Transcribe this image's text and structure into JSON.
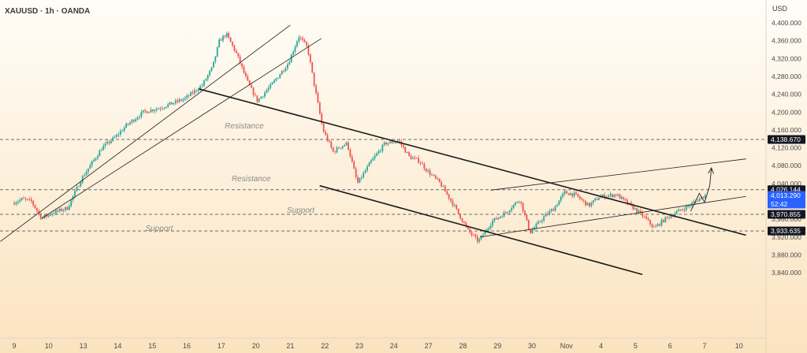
{
  "header": {
    "symbol": "XAUUSD",
    "timeframe": "1h",
    "broker": "OANDA",
    "separator": " · ",
    "currency": "USD"
  },
  "colors": {
    "bg_top": "#fffdf8",
    "bg_bottom": "#fbe3bf",
    "up": "#26a69a",
    "down": "#ef5350",
    "line": "#1a1a1a",
    "grid_text": "#4a4a4a",
    "annotation": "#8a8a8a",
    "badge_dark": "#131722",
    "badge_blue": "#2962ff"
  },
  "chart_data": {
    "type": "candlestick",
    "title": "XAUUSD · 1h · OANDA",
    "ylabel": "USD",
    "ylim": [
      3826,
      4438
    ],
    "y_ticks": [
      4400,
      4360,
      4320,
      4280,
      4240,
      4200,
      4160,
      4120,
      4080,
      4040,
      4000,
      3960,
      3920,
      3880,
      3840
    ],
    "y_tick_labels": [
      "4,400.000",
      "4,360.000",
      "4,320.000",
      "4,280.000",
      "4,240.000",
      "4,200.000",
      "4,160.000",
      "4,120.000",
      "4,080.000",
      "4,040.000",
      "4,000.000",
      "3,960.000",
      "3,920.000",
      "3,880.000",
      "3,840.000"
    ],
    "x_labels": [
      {
        "label": "9",
        "pos": 0
      },
      {
        "label": "10",
        "pos": 1
      },
      {
        "label": "13",
        "pos": 2
      },
      {
        "label": "14",
        "pos": 3
      },
      {
        "label": "15",
        "pos": 4
      },
      {
        "label": "16",
        "pos": 5
      },
      {
        "label": "17",
        "pos": 6
      },
      {
        "label": "20",
        "pos": 7
      },
      {
        "label": "21",
        "pos": 8
      },
      {
        "label": "22",
        "pos": 9
      },
      {
        "label": "23",
        "pos": 10
      },
      {
        "label": "24",
        "pos": 11
      },
      {
        "label": "27",
        "pos": 12
      },
      {
        "label": "28",
        "pos": 13
      },
      {
        "label": "29",
        "pos": 14
      },
      {
        "label": "30",
        "pos": 15
      },
      {
        "label": "Nov",
        "pos": 16
      },
      {
        "label": "4",
        "pos": 17
      },
      {
        "label": "5",
        "pos": 18
      },
      {
        "label": "6",
        "pos": 19
      },
      {
        "label": "7",
        "pos": 20
      },
      {
        "label": "10",
        "pos": 21
      }
    ],
    "price_path": [
      [
        0,
        3996
      ],
      [
        0.3,
        4005
      ],
      [
        0.55,
        4000
      ],
      [
        0.85,
        3962
      ],
      [
        1.2,
        3975
      ],
      [
        1.6,
        3985
      ],
      [
        2.0,
        4050
      ],
      [
        2.6,
        4120
      ],
      [
        3.0,
        4145
      ],
      [
        3.3,
        4170
      ],
      [
        3.8,
        4200
      ],
      [
        4.3,
        4210
      ],
      [
        5.0,
        4230
      ],
      [
        5.5,
        4260
      ],
      [
        5.8,
        4300
      ],
      [
        6.0,
        4360
      ],
      [
        6.2,
        4375
      ],
      [
        6.5,
        4330
      ],
      [
        6.8,
        4270
      ],
      [
        7.1,
        4225
      ],
      [
        7.5,
        4260
      ],
      [
        7.8,
        4290
      ],
      [
        8.0,
        4310
      ],
      [
        8.3,
        4370
      ],
      [
        8.55,
        4345
      ],
      [
        8.75,
        4260
      ],
      [
        9.0,
        4160
      ],
      [
        9.3,
        4110
      ],
      [
        9.45,
        4120
      ],
      [
        9.7,
        4130
      ],
      [
        10.0,
        4040
      ],
      [
        10.4,
        4090
      ],
      [
        10.8,
        4130
      ],
      [
        11.2,
        4135
      ],
      [
        11.5,
        4100
      ],
      [
        11.8,
        4090
      ],
      [
        12.0,
        4070
      ],
      [
        12.4,
        4040
      ],
      [
        12.8,
        3990
      ],
      [
        13.2,
        3935
      ],
      [
        13.5,
        3910
      ],
      [
        13.9,
        3955
      ],
      [
        14.3,
        3975
      ],
      [
        14.7,
        4005
      ],
      [
        15.0,
        3930
      ],
      [
        15.4,
        3965
      ],
      [
        15.7,
        3985
      ],
      [
        16.0,
        4020
      ],
      [
        16.3,
        4015
      ],
      [
        16.7,
        3990
      ],
      [
        17.0,
        4010
      ],
      [
        17.5,
        4015
      ],
      [
        18.0,
        3985
      ],
      [
        18.3,
        3965
      ],
      [
        18.6,
        3940
      ],
      [
        18.9,
        3960
      ],
      [
        19.3,
        3978
      ],
      [
        19.6,
        3990
      ],
      [
        19.85,
        4003
      ],
      [
        20.05,
        4013
      ]
    ],
    "series": [
      {
        "name": "Resistance",
        "value": 4138.67,
        "style": "dashed"
      },
      {
        "name": "Resistance",
        "value": 4026.144,
        "style": "dashed"
      },
      {
        "name": "Support",
        "value": 3970.855,
        "style": "dashed"
      },
      {
        "name": "Support",
        "value": 3933.635,
        "style": "dashed"
      }
    ],
    "trendlines": [
      {
        "kind": "thin",
        "from": [
          -0.4,
          3910
        ],
        "to": [
          8.0,
          4395
        ]
      },
      {
        "kind": "thin",
        "from": [
          0.8,
          3962
        ],
        "to": [
          8.9,
          4365
        ]
      },
      {
        "kind": "thick",
        "from": [
          5.35,
          4252
        ],
        "to": [
          21.2,
          3924
        ]
      },
      {
        "kind": "thick",
        "from": [
          8.85,
          4035
        ],
        "to": [
          18.2,
          3836
        ]
      },
      {
        "kind": "thin",
        "from": [
          13.8,
          4025
        ],
        "to": [
          21.2,
          4095
        ]
      },
      {
        "kind": "thin",
        "from": [
          13.5,
          3920
        ],
        "to": [
          21.2,
          4011
        ]
      }
    ],
    "projection": [
      [
        19.6,
        3978
      ],
      [
        19.85,
        4018
      ],
      [
        20.0,
        3998
      ],
      [
        20.15,
        4035
      ],
      [
        20.2,
        4075
      ]
    ],
    "annotations": [
      {
        "text": "Resistance",
        "pos": 6.1,
        "value": 4163
      },
      {
        "text": "Resistance",
        "pos": 6.3,
        "value": 4045
      },
      {
        "text": "Support",
        "pos": 7.9,
        "value": 3974
      },
      {
        "text": "Support",
        "pos": 3.8,
        "value": 3934
      }
    ],
    "price_labels": [
      {
        "text": "4,138.670",
        "value": 4138.67,
        "style": "dark"
      },
      {
        "text": "4,026.144",
        "value": 4026.144,
        "style": "dark"
      },
      {
        "text": "4,013.290",
        "value": 4013.29,
        "style": "blue",
        "sub": "52:42"
      },
      {
        "text": "3,970.855",
        "value": 3970.855,
        "style": "dark"
      },
      {
        "text": "3,933.635",
        "value": 3933.635,
        "style": "dark"
      }
    ],
    "last_price": 4013.29,
    "countdown": "52:42",
    "grid": false,
    "legend": "none"
  }
}
